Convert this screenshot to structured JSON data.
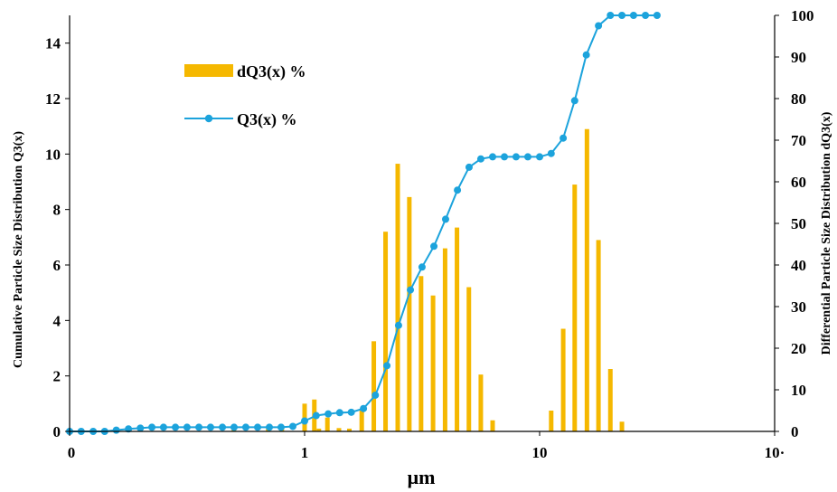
{
  "chart_data": {
    "type": "bar+line",
    "x_scale": "log",
    "x_tick_labels": [
      "0",
      "1",
      "10",
      "10·"
    ],
    "xlabel": "μm",
    "ylabel_left": "Cumulative Particle Size Distribution Q3(x)",
    "ylabel_right": "Differential Particle Size Distribution dQ3(x)",
    "ylim_left": [
      0,
      15
    ],
    "ylim_right": [
      0,
      100
    ],
    "y_ticks_left": [
      0,
      2,
      4,
      6,
      8,
      10,
      12,
      14
    ],
    "y_ticks_right": [
      0,
      10,
      20,
      30,
      40,
      50,
      60,
      70,
      80,
      90,
      100
    ],
    "legend_position": "upper-left",
    "colors": {
      "bars": "#F5B800",
      "line": "#1CA3DC"
    },
    "series": [
      {
        "name": "dQ3(x) %",
        "kind": "bar",
        "axis": "left",
        "x": [
          0.2,
          0.5,
          0.7,
          0.8,
          1.0,
          1.1,
          1.15,
          1.25,
          1.4,
          1.55,
          1.75,
          1.97,
          2.21,
          2.49,
          2.79,
          3.13,
          3.52,
          3.96,
          4.45,
          5.0,
          5.62,
          6.31,
          11.2,
          12.6,
          14.1,
          15.9,
          17.8,
          20.0,
          22.4
        ],
        "values": [
          0.2,
          0.15,
          0.1,
          0.1,
          1.0,
          1.15,
          0.1,
          0.5,
          0.12,
          0.1,
          0.75,
          3.25,
          7.2,
          9.65,
          8.45,
          5.6,
          4.9,
          6.6,
          7.35,
          5.2,
          2.05,
          0.4,
          0.75,
          3.7,
          8.9,
          10.9,
          6.9,
          2.25,
          0.35
        ]
      },
      {
        "name": "Q3(x) %",
        "kind": "line",
        "axis": "right",
        "x": [
          0.1,
          0.112,
          0.126,
          0.141,
          0.158,
          0.178,
          0.2,
          0.224,
          0.251,
          0.282,
          0.316,
          0.355,
          0.398,
          0.447,
          0.501,
          0.562,
          0.631,
          0.708,
          0.794,
          0.891,
          1.0,
          1.12,
          1.26,
          1.41,
          1.58,
          1.78,
          2.0,
          2.24,
          2.51,
          2.82,
          3.16,
          3.55,
          3.98,
          4.47,
          5.01,
          5.62,
          6.31,
          7.08,
          7.94,
          8.91,
          10.0,
          11.2,
          12.6,
          14.1,
          15.8,
          17.8,
          20.0,
          22.4,
          25.1,
          28.2,
          31.6
        ],
        "values": [
          0,
          0,
          0,
          0,
          0.3,
          0.6,
          0.8,
          1.0,
          1.0,
          1.0,
          1.0,
          1.0,
          1.0,
          1.0,
          1.0,
          1.0,
          1.0,
          1.0,
          1.0,
          1.2,
          2.5,
          3.8,
          4.2,
          4.5,
          4.6,
          5.5,
          8.7,
          15.8,
          25.5,
          34.0,
          39.5,
          44.5,
          51.0,
          58.0,
          63.5,
          65.5,
          66.0,
          66.0,
          66.0,
          66.0,
          66.0,
          66.8,
          70.5,
          79.5,
          90.5,
          97.5,
          100,
          100,
          100,
          100,
          100
        ]
      }
    ]
  }
}
